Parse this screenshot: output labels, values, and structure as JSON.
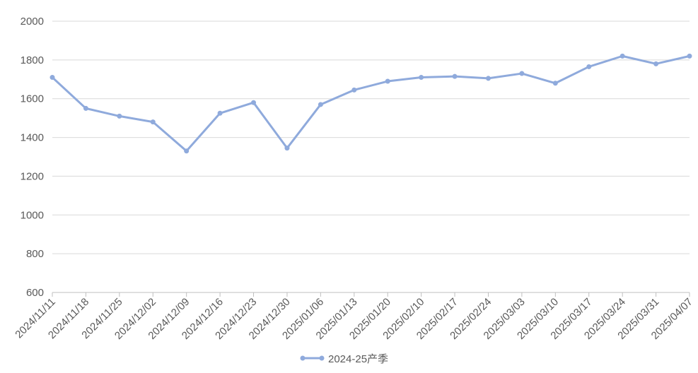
{
  "chart_data": {
    "type": "line",
    "title": "",
    "xlabel": "",
    "ylabel": "",
    "ylim": [
      600,
      2000
    ],
    "yticks": [
      600,
      800,
      1000,
      1200,
      1400,
      1600,
      1800,
      2000
    ],
    "ytick_labels": [
      "600",
      "800",
      "1000",
      "1200",
      "1400",
      "1600",
      "1800",
      "2000"
    ],
    "grid": "horizontal",
    "legend_position": "bottom",
    "categories": [
      "2024/11/11",
      "2024/11/18",
      "2024/11/25",
      "2024/12/02",
      "2024/12/09",
      "2024/12/16",
      "2024/12/23",
      "2024/12/30",
      "2025/01/06",
      "2025/01/13",
      "2025/01/20",
      "2025/02/10",
      "2025/02/17",
      "2025/02/24",
      "2025/03/03",
      "2025/03/10",
      "2025/03/17",
      "2025/03/24",
      "2025/03/31",
      "2025/04/07"
    ],
    "series": [
      {
        "name": "2024-25产季",
        "color": "#8FAADC",
        "values": [
          1710,
          1550,
          1510,
          1480,
          1330,
          1525,
          1580,
          1345,
          1570,
          1645,
          1690,
          1710,
          1715,
          1705,
          1730,
          1680,
          1765,
          1820,
          1780,
          1820
        ]
      }
    ]
  },
  "colors": {
    "line": "#8FAADC",
    "grid": "#D9D9D9",
    "axis": "#BFBFBF",
    "text": "#595959"
  }
}
